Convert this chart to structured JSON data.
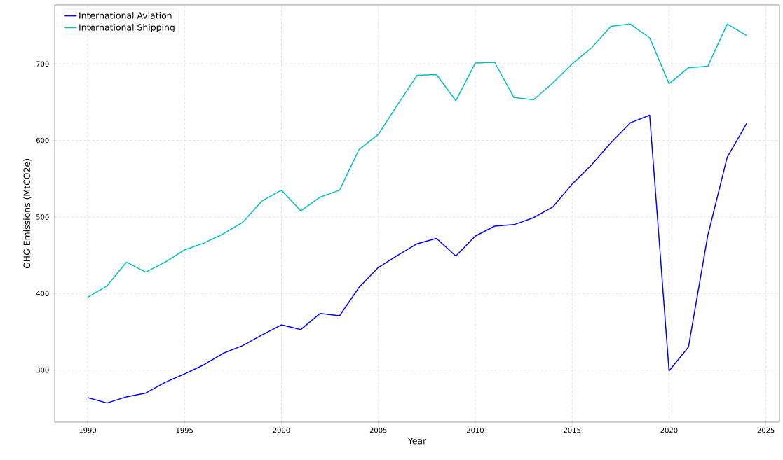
{
  "chart_data": {
    "type": "line",
    "xlabel": "Year",
    "ylabel": "GHG Emissions (MtCO2e)",
    "x": [
      1990,
      1991,
      1992,
      1993,
      1994,
      1995,
      1996,
      1997,
      1998,
      1999,
      2000,
      2001,
      2002,
      2003,
      2004,
      2005,
      2006,
      2007,
      2008,
      2009,
      2010,
      2011,
      2012,
      2013,
      2014,
      2015,
      2016,
      2017,
      2018,
      2019,
      2020,
      2021,
      2022,
      2023,
      2024
    ],
    "series": [
      {
        "name": "International Aviation",
        "color": "#0000ff",
        "values": [
          264,
          257,
          265,
          270,
          284,
          295,
          307,
          322,
          332,
          346,
          359,
          353,
          374,
          371,
          408,
          434,
          450,
          465,
          472,
          449,
          475,
          488,
          490,
          499,
          513,
          543,
          568,
          597,
          623,
          633,
          299,
          330,
          476,
          578,
          622
        ]
      },
      {
        "name": "International Shipping",
        "color": "#00bfbf",
        "values": [
          395,
          410,
          441,
          428,
          441,
          457,
          466,
          478,
          493,
          521,
          535,
          508,
          526,
          535,
          588,
          608,
          647,
          685,
          686,
          652,
          701,
          702,
          656,
          653,
          675,
          700,
          721,
          749,
          752,
          734,
          674,
          695,
          697,
          752,
          737
        ]
      }
    ],
    "xlim": [
      1988.3,
      2025.7
    ],
    "ylim": [
      232,
      777
    ],
    "xticks": [
      1990,
      1995,
      2000,
      2005,
      2010,
      2015,
      2020,
      2025
    ],
    "yticks": [
      300,
      400,
      500,
      600,
      700
    ],
    "grid": true,
    "legend": "top left",
    "line_style": "solid",
    "marker": "none"
  }
}
